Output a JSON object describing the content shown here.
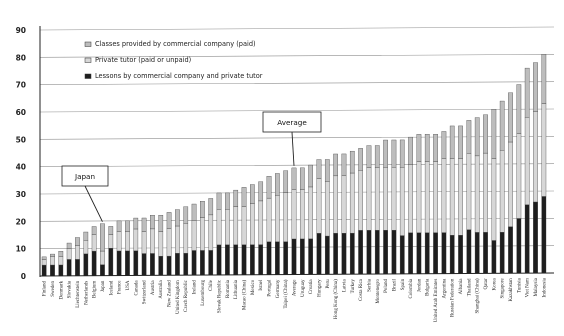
{
  "chart_data": {
    "type": "bar",
    "title": "",
    "xlabel": "",
    "ylabel": "",
    "ylim": [
      0,
      90
    ],
    "yticks": [
      0,
      10,
      20,
      30,
      40,
      50,
      60,
      70,
      80,
      90
    ],
    "grid": true,
    "legend_position": "top-left",
    "categories": [
      "Finland",
      "Sweden",
      "Denmark",
      "Slovakia",
      "Liechtenstein",
      "Netherlands",
      "Belgium",
      "Japan",
      "Iceland",
      "France",
      "USA",
      "Canada",
      "Switzerland",
      "Austria",
      "Australia",
      "New Zealand",
      "United Kingdom",
      "Czech Republic",
      "Ireland",
      "Luxembourg",
      "Chile",
      "Slovak Republic",
      "Romania",
      "Lithuania",
      "Macao (China)",
      "Mexico",
      "Israel",
      "Portugal",
      "Germany",
      "Taipei (China)",
      "Average",
      "Uruguay",
      "Croatia",
      "Hungary",
      "Peru",
      "Hong Kong (China)",
      "Latvia",
      "Turkey",
      "Costa Rica",
      "Serbia",
      "Montenegro",
      "Poland",
      "Brazil",
      "Spain",
      "Colombia",
      "Jordan",
      "Bulgaria",
      "United Arab Emirates",
      "Argentina",
      "Russian Federation",
      "Albania",
      "Thailand",
      "Shanghai (China)",
      "Qatar",
      "Korea",
      "Singapore",
      "Kazakhstan",
      "Tunisia",
      "Viet Nam",
      "Malaysia",
      "Indonesia"
    ],
    "series": [
      {
        "name": "Classes provided by commercial company (paid)",
        "values": [
          1,
          1,
          2,
          2,
          3,
          3,
          3,
          10,
          3,
          4,
          4,
          4,
          5,
          5,
          6,
          6,
          6,
          6,
          6,
          6,
          6,
          6,
          6,
          6,
          7,
          7,
          7,
          8,
          8,
          8,
          8,
          8,
          8,
          7,
          8,
          8,
          8,
          8,
          8,
          8,
          8,
          10,
          10,
          10,
          10,
          10,
          10,
          10,
          10,
          12,
          12,
          12,
          14,
          14,
          18,
          18,
          18,
          18,
          18,
          18,
          18
        ]
      },
      {
        "name": "Private tutor (paid or unpaid)",
        "values": [
          2,
          3,
          3,
          4,
          5,
          5,
          6,
          5,
          5,
          7,
          7,
          8,
          8,
          9,
          9,
          10,
          10,
          11,
          11,
          12,
          13,
          13,
          13,
          14,
          14,
          15,
          16,
          16,
          17,
          18,
          18,
          18,
          19,
          20,
          20,
          21,
          21,
          22,
          22,
          23,
          23,
          23,
          23,
          25,
          25,
          26,
          26,
          26,
          27,
          28,
          28,
          28,
          28,
          29,
          30,
          30,
          31,
          31,
          32,
          33,
          34
        ]
      },
      {
        "name": "Lessons by commercial company and private tutor",
        "values": [
          4,
          4,
          4,
          6,
          6,
          8,
          9,
          4,
          10,
          9,
          9,
          9,
          8,
          8,
          7,
          7,
          8,
          8,
          9,
          9,
          9,
          11,
          11,
          11,
          11,
          11,
          11,
          12,
          12,
          12,
          13,
          13,
          13,
          15,
          14,
          15,
          15,
          15,
          16,
          16,
          16,
          16,
          16,
          14,
          15,
          15,
          15,
          15,
          15,
          14,
          14,
          16,
          15,
          15,
          12,
          15,
          17,
          20,
          25,
          26,
          28
        ]
      }
    ],
    "annotations": [
      {
        "label": "Japan",
        "target": "Japan"
      },
      {
        "label": "Average",
        "target": "Average"
      }
    ],
    "colors": {
      "classes": "#bdbdbd",
      "tutor": "#d7d7d7",
      "lessons": "#1e1e1e",
      "grid": "#8e8e8e",
      "axis": "#222222"
    }
  }
}
